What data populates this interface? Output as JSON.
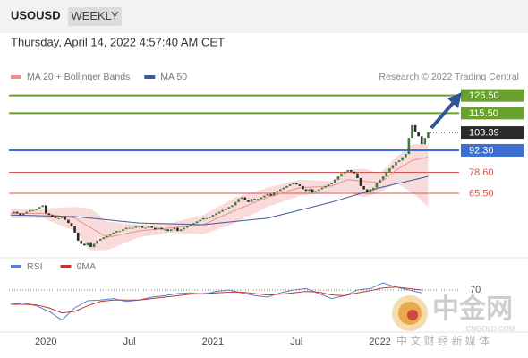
{
  "header": {
    "symbol": "USOUSD",
    "timeframe": "WEEKLY",
    "timestamp": "Thursday, April 14, 2022 4:57:40 AM CET"
  },
  "chart_data": [
    {
      "type": "candlestick",
      "credit": "Research © 2022 Trading Central",
      "xlim": [
        -0.5,
        131
      ],
      "ylim": [
        27,
        133
      ],
      "xticks": [
        {
          "value": 11,
          "label": "2020"
        },
        {
          "value": 37,
          "label": "Jul"
        },
        {
          "value": 63,
          "label": "2021"
        },
        {
          "value": 89,
          "label": "Jul"
        },
        {
          "value": 115,
          "label": "2022"
        }
      ],
      "up_color": "#3d7d3a",
      "down_color": "#2b2b2b",
      "series": [
        {
          "name": "USOUSD",
          "values": [
            53,
            54,
            53,
            52,
            53,
            54,
            55,
            55,
            56,
            57,
            58,
            53,
            52,
            51,
            50,
            50,
            51,
            49,
            47,
            45,
            41,
            36,
            34,
            33,
            35,
            32,
            34,
            36,
            37,
            38,
            39,
            40,
            41,
            42,
            42,
            43,
            44,
            44,
            44,
            45,
            45,
            44,
            44,
            45,
            44,
            43,
            44,
            43,
            43,
            42,
            43,
            44,
            42,
            43,
            44,
            45,
            46,
            47,
            48,
            49,
            50,
            50,
            51,
            52,
            53,
            54,
            55,
            56,
            57,
            58,
            60,
            62,
            63,
            61,
            60,
            62,
            61,
            62,
            63,
            64,
            65,
            64,
            66,
            67,
            68,
            69,
            70,
            71,
            72,
            71,
            70,
            68,
            67,
            68,
            66,
            67,
            68,
            69,
            70,
            71,
            72,
            74,
            76,
            78,
            79,
            80,
            79,
            78,
            75,
            70,
            68,
            66,
            68,
            69,
            72,
            74,
            76,
            79,
            81,
            83,
            85,
            86,
            88,
            90,
            100,
            108,
            104,
            101,
            96,
            100,
            103.39
          ]
        },
        {
          "name": "MA 20 + Bollinger Bands",
          "color": "#e8928c",
          "band_color": "#f6cfcd",
          "x": [
            0,
            10,
            20,
            25,
            30,
            40,
            50,
            60,
            70,
            80,
            90,
            100,
            105,
            110,
            115,
            120,
            125,
            130
          ],
          "values": [
            53,
            53,
            50,
            44,
            38,
            42,
            44,
            46,
            55,
            63,
            69,
            70,
            74,
            73,
            72,
            80,
            86,
            88
          ],
          "upper": [
            56,
            56,
            57,
            56,
            48,
            46,
            47,
            52,
            63,
            69,
            74,
            73,
            80,
            81,
            78,
            88,
            96,
            96
          ],
          "lower": [
            50,
            50,
            42,
            30,
            30,
            38,
            41,
            40,
            47,
            57,
            64,
            66,
            66,
            63,
            66,
            72,
            66,
            57
          ]
        },
        {
          "name": "MA 50",
          "color": "#3d5a98",
          "x": [
            0,
            20,
            40,
            60,
            80,
            100,
            115,
            130
          ],
          "values": [
            52,
            51,
            47,
            46,
            50,
            60,
            69,
            76
          ]
        }
      ],
      "levels": [
        {
          "value": 126.5,
          "label": "126.50",
          "color": "#6aa12e",
          "boxed": true
        },
        {
          "value": 115.5,
          "label": "115.50",
          "color": "#6aa12e",
          "boxed": true
        },
        {
          "value": 103.39,
          "label": "103.39",
          "color": "#2b2b2b",
          "boxed": true
        },
        {
          "value": 92.3,
          "label": "92.30",
          "color": "#3b6fd1",
          "boxed": true
        },
        {
          "value": 78.6,
          "label": "78.60",
          "color": "#d9534f",
          "boxed": false
        },
        {
          "value": 65.5,
          "label": "65.50",
          "color": "#d9534f",
          "boxed": false
        }
      ]
    },
    {
      "type": "line",
      "ylim": [
        10,
        100
      ],
      "yticks": [
        70
      ],
      "x": [
        0,
        4,
        8,
        12,
        16,
        20,
        24,
        28,
        32,
        36,
        40,
        44,
        48,
        52,
        56,
        60,
        64,
        68,
        72,
        76,
        80,
        84,
        88,
        92,
        96,
        100,
        104,
        108,
        112,
        116,
        120,
        124,
        128
      ],
      "series": [
        {
          "name": "RSI",
          "color": "#5b7fd4",
          "values": [
            50,
            52,
            48,
            40,
            28,
            45,
            55,
            56,
            58,
            54,
            56,
            60,
            62,
            65,
            66,
            64,
            68,
            70,
            66,
            62,
            60,
            66,
            70,
            72,
            65,
            58,
            62,
            70,
            72,
            80,
            74,
            70,
            66
          ]
        },
        {
          "name": "9MA",
          "color": "#c23b32",
          "values": [
            50,
            50,
            49,
            45,
            38,
            40,
            48,
            54,
            56,
            56,
            56,
            58,
            60,
            62,
            64,
            65,
            66,
            67,
            67,
            65,
            63,
            64,
            66,
            68,
            67,
            63,
            62,
            66,
            69,
            73,
            74,
            72,
            70
          ]
        }
      ]
    }
  ],
  "watermark": {
    "brand": "中金网",
    "site": "CNGOLD.COM",
    "tagline": "中 文 财 经 新 媒 体"
  }
}
